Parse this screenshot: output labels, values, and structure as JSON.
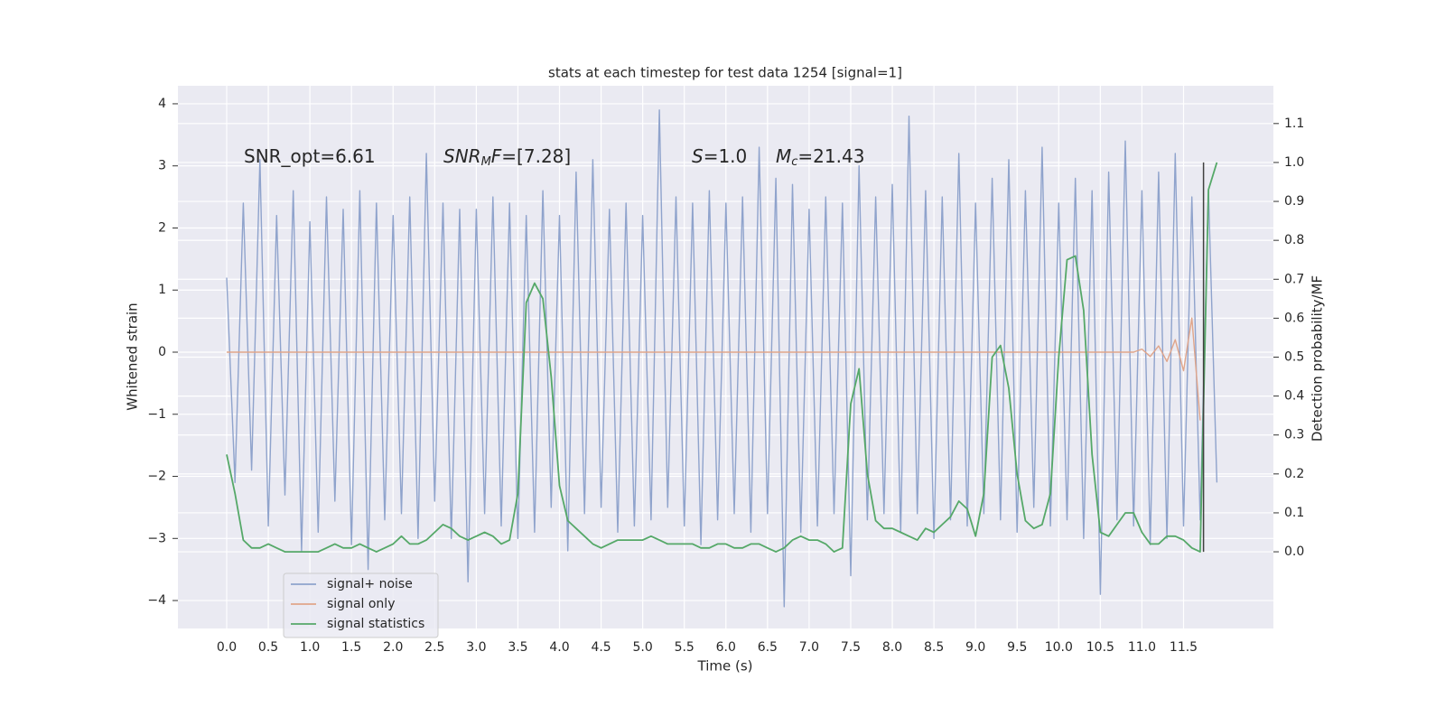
{
  "chart_data": {
    "type": "line",
    "title": "stats at each timestep for test data 1254 [signal=1]",
    "xlabel": "Time (s)",
    "ylabel": "Whitened strain",
    "y2label": "Detection probability/MF",
    "annotations": [
      [
        {
          "t": "SNR_opt=6.61"
        }
      ],
      [
        {
          "t": "SNR",
          "italic": true
        },
        {
          "t": "M",
          "italic": true,
          "sub": true
        },
        {
          "t": "F",
          "italic": true
        },
        {
          "t": "=[7.28]"
        }
      ],
      [
        {
          "t": "S",
          "italic": true
        },
        {
          "t": "=1.0"
        }
      ],
      [
        {
          "t": "M",
          "italic": true
        },
        {
          "t": "c",
          "italic": true,
          "sub": true
        },
        {
          "t": "=21.43"
        }
      ]
    ],
    "x": [
      0,
      0.1,
      0.2,
      0.3,
      0.4,
      0.5,
      0.6,
      0.7,
      0.8,
      0.9,
      1,
      1.1,
      1.2,
      1.3,
      1.4,
      1.5,
      1.6,
      1.7,
      1.8,
      1.9,
      2,
      2.1,
      2.2,
      2.3,
      2.4,
      2.5,
      2.6,
      2.7,
      2.8,
      2.9,
      3,
      3.1,
      3.2,
      3.3,
      3.4,
      3.5,
      3.6,
      3.7,
      3.8,
      3.9,
      4,
      4.1,
      4.2,
      4.3,
      4.4,
      4.5,
      4.6,
      4.7,
      4.8,
      4.9,
      5,
      5.1,
      5.2,
      5.3,
      5.4,
      5.5,
      5.6,
      5.7,
      5.8,
      5.9,
      6,
      6.1,
      6.2,
      6.3,
      6.4,
      6.5,
      6.6,
      6.7,
      6.8,
      6.9,
      7,
      7.1,
      7.2,
      7.3,
      7.4,
      7.5,
      7.6,
      7.7,
      7.8,
      7.9,
      8,
      8.1,
      8.2,
      8.3,
      8.4,
      8.5,
      8.6,
      8.7,
      8.8,
      8.9,
      9,
      9.1,
      9.2,
      9.3,
      9.4,
      9.5,
      9.6,
      9.7,
      9.8,
      9.9,
      10,
      10.1,
      10.2,
      10.3,
      10.4,
      10.5,
      10.6,
      10.7,
      10.8,
      10.9,
      11,
      11.1,
      11.2,
      11.3,
      11.4,
      11.5,
      11.6,
      11.7,
      11.8,
      11.9
    ],
    "series": [
      {
        "name": "signal+ noise",
        "color": "#8fa3cc",
        "axis": "y",
        "values": [
          1.2,
          -2.1,
          2.4,
          -1.9,
          3.1,
          -2.8,
          2.2,
          -2.3,
          2.6,
          -3.2,
          2.1,
          -2.9,
          2.5,
          -2.4,
          2.3,
          -3.1,
          2.6,
          -3.5,
          2.4,
          -2.7,
          2.2,
          -2.6,
          2.5,
          -3.0,
          3.2,
          -2.4,
          2.4,
          -3.0,
          2.3,
          -3.7,
          2.3,
          -2.6,
          2.5,
          -2.8,
          2.4,
          -3.0,
          2.2,
          -2.9,
          2.6,
          -2.5,
          2.2,
          -3.2,
          2.9,
          -2.6,
          3.1,
          -2.5,
          2.3,
          -2.9,
          2.4,
          -2.8,
          2.2,
          -2.7,
          3.9,
          -2.5,
          2.5,
          -2.8,
          2.4,
          -3.1,
          2.6,
          -2.7,
          2.4,
          -2.6,
          2.5,
          -2.9,
          3.3,
          -2.6,
          2.8,
          -4.1,
          2.7,
          -2.9,
          2.3,
          -2.8,
          2.5,
          -2.6,
          2.4,
          -3.6,
          3.0,
          -2.7,
          2.5,
          -2.6,
          2.7,
          -2.9,
          3.8,
          -2.6,
          2.6,
          -3.0,
          2.5,
          -2.7,
          3.2,
          -2.8,
          2.4,
          -2.6,
          2.8,
          -2.7,
          3.1,
          -2.9,
          2.6,
          -2.5,
          3.3,
          -2.8,
          2.4,
          -2.7,
          2.8,
          -3.0,
          2.6,
          -3.9,
          2.9,
          -2.7,
          3.4,
          -2.8,
          2.6,
          -3.1,
          2.9,
          -3.0,
          3.2,
          -2.8,
          2.5,
          -2.7,
          2.6,
          -2.1
        ]
      },
      {
        "name": "signal only",
        "color": "#e0a58a",
        "axis": "y",
        "values": [
          0,
          0,
          0,
          0,
          0,
          0,
          0,
          0,
          0,
          0,
          0,
          0,
          0,
          0,
          0,
          0,
          0,
          0,
          0,
          0,
          0,
          0,
          0,
          0,
          0,
          0,
          0,
          0,
          0,
          0,
          0,
          0,
          0,
          0,
          0,
          0,
          0,
          0,
          0,
          0,
          0,
          0,
          0,
          0,
          0,
          0,
          0,
          0,
          0,
          0,
          0,
          0,
          0,
          0,
          0,
          0,
          0,
          0,
          0,
          0,
          0,
          0,
          0,
          0,
          0,
          0,
          0,
          0,
          0,
          0,
          0,
          0,
          0,
          0,
          0,
          0,
          0,
          0,
          0,
          0,
          0,
          0,
          0,
          0,
          0,
          0,
          0,
          0,
          0,
          0,
          0,
          0,
          0,
          0,
          0,
          0,
          0,
          0,
          0,
          0,
          0,
          0,
          0,
          0,
          0,
          0,
          0,
          0,
          0,
          0,
          0.05,
          -0.07,
          0.1,
          -0.15,
          0.2,
          -0.3,
          0.55,
          -1.1,
          null,
          null
        ]
      },
      {
        "name": "signal statistics",
        "color": "#55a868",
        "axis": "y2",
        "values": [
          0.25,
          0.15,
          0.03,
          0.01,
          0.01,
          0.02,
          0.01,
          0,
          0,
          0,
          0,
          0,
          0.01,
          0.02,
          0.01,
          0.01,
          0.02,
          0.01,
          0,
          0.01,
          0.02,
          0.04,
          0.02,
          0.02,
          0.03,
          0.05,
          0.07,
          0.06,
          0.04,
          0.03,
          0.04,
          0.05,
          0.04,
          0.02,
          0.03,
          0.15,
          0.64,
          0.69,
          0.65,
          0.45,
          0.17,
          0.08,
          0.06,
          0.04,
          0.02,
          0.01,
          0.02,
          0.03,
          0.03,
          0.03,
          0.03,
          0.04,
          0.03,
          0.02,
          0.02,
          0.02,
          0.02,
          0.01,
          0.01,
          0.02,
          0.02,
          0.01,
          0.01,
          0.02,
          0.02,
          0.01,
          0,
          0.01,
          0.03,
          0.04,
          0.03,
          0.03,
          0.02,
          0,
          0.01,
          0.38,
          0.47,
          0.2,
          0.08,
          0.06,
          0.06,
          0.05,
          0.04,
          0.03,
          0.06,
          0.05,
          0.07,
          0.09,
          0.13,
          0.11,
          0.04,
          0.15,
          0.5,
          0.53,
          0.42,
          0.2,
          0.08,
          0.06,
          0.07,
          0.15,
          0.5,
          0.75,
          0.76,
          0.62,
          0.25,
          0.05,
          0.04,
          0.07,
          0.1,
          0.1,
          0.05,
          0.02,
          0.02,
          0.04,
          0.04,
          0.03,
          0.01,
          0,
          0.93,
          1.0
        ]
      }
    ],
    "vline": {
      "x": 11.74,
      "ymin": 0,
      "ymax": 1,
      "color": "#404040"
    },
    "xlim": [
      -0.586,
      12.58
    ],
    "ylim": [
      -4.45,
      4.29
    ],
    "y2lim": [
      -0.197,
      1.197
    ],
    "xticks": [
      {
        "value": 0,
        "label": "0.0"
      },
      0.5,
      {
        "value": 1,
        "label": "1.0"
      },
      1.5,
      {
        "value": 2,
        "label": "2.0"
      },
      2.5,
      {
        "value": 3,
        "label": "3.0"
      },
      3.5,
      {
        "value": 4,
        "label": "4.0"
      },
      4.5,
      {
        "value": 5,
        "label": "5.0"
      },
      5.5,
      {
        "value": 6,
        "label": "6.0"
      },
      6.5,
      {
        "value": 7,
        "label": "7.0"
      },
      7.5,
      {
        "value": 8,
        "label": "8.0"
      },
      8.5,
      {
        "value": 9,
        "label": "9.0"
      },
      9.5,
      {
        "value": 10,
        "label": "10.0"
      },
      10.5,
      {
        "value": 11,
        "label": "11.0"
      },
      11.5
    ],
    "yticks": [
      {
        "value": -4,
        "label": "−4"
      },
      {
        "value": -3,
        "label": "−3"
      },
      {
        "value": -2,
        "label": "−2"
      },
      {
        "value": -1,
        "label": "−1"
      },
      0,
      1,
      2,
      3,
      4
    ],
    "y2ticks": [
      {
        "value": 0,
        "label": "0.0"
      },
      0.1,
      0.2,
      0.3,
      0.4,
      0.5,
      0.6,
      0.7,
      0.8,
      0.9,
      {
        "value": 1,
        "label": "1.0"
      },
      1.1
    ],
    "grid": true,
    "background": "#eaeaf2",
    "legend": "lower left"
  }
}
